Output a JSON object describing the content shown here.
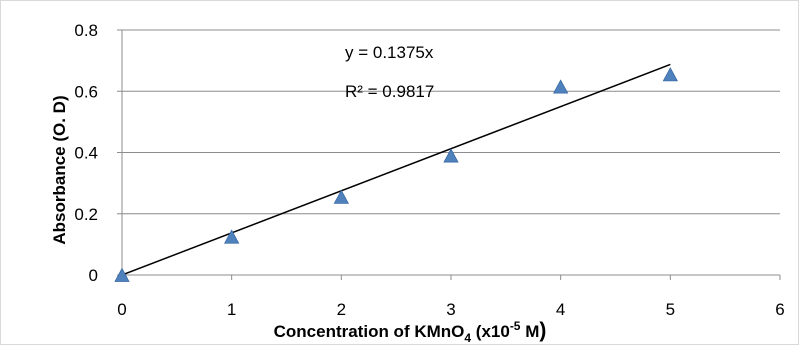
{
  "chart_data": {
    "type": "scatter",
    "xlabel": "Concentration of KMnO4 (x10-5 M)",
    "xlabel_parts": {
      "a": "Concentration of KMnO",
      "sub": "4",
      "b": " (x10",
      "sup": "-5",
      "c": "  M",
      "d": ")"
    },
    "ylabel": "Absorbance (O. D)",
    "xlim": [
      0,
      6
    ],
    "ylim": [
      0,
      0.8
    ],
    "x_ticks": [
      0,
      1,
      2,
      3,
      4,
      5,
      6
    ],
    "y_ticks": [
      0,
      0.2,
      0.4,
      0.6,
      0.8
    ],
    "x_tick_labels": [
      "0",
      "1",
      "2",
      "3",
      "4",
      "5",
      "6"
    ],
    "y_tick_labels": [
      "0",
      "0.2",
      "0.4",
      "0.6",
      "0.8"
    ],
    "grid": true,
    "series": [
      {
        "x": [
          0,
          1,
          2,
          3,
          4,
          5
        ],
        "y": [
          0.0,
          0.125,
          0.255,
          0.39,
          0.615,
          0.655
        ],
        "marker": "triangle",
        "color": "#4F81BD"
      }
    ],
    "trendline": {
      "slope": 0.1375,
      "intercept": 0,
      "x_range": [
        0,
        5
      ],
      "color": "#000000",
      "equation": "y = 0.1375x",
      "r_squared": "R² = 0.9817"
    }
  }
}
